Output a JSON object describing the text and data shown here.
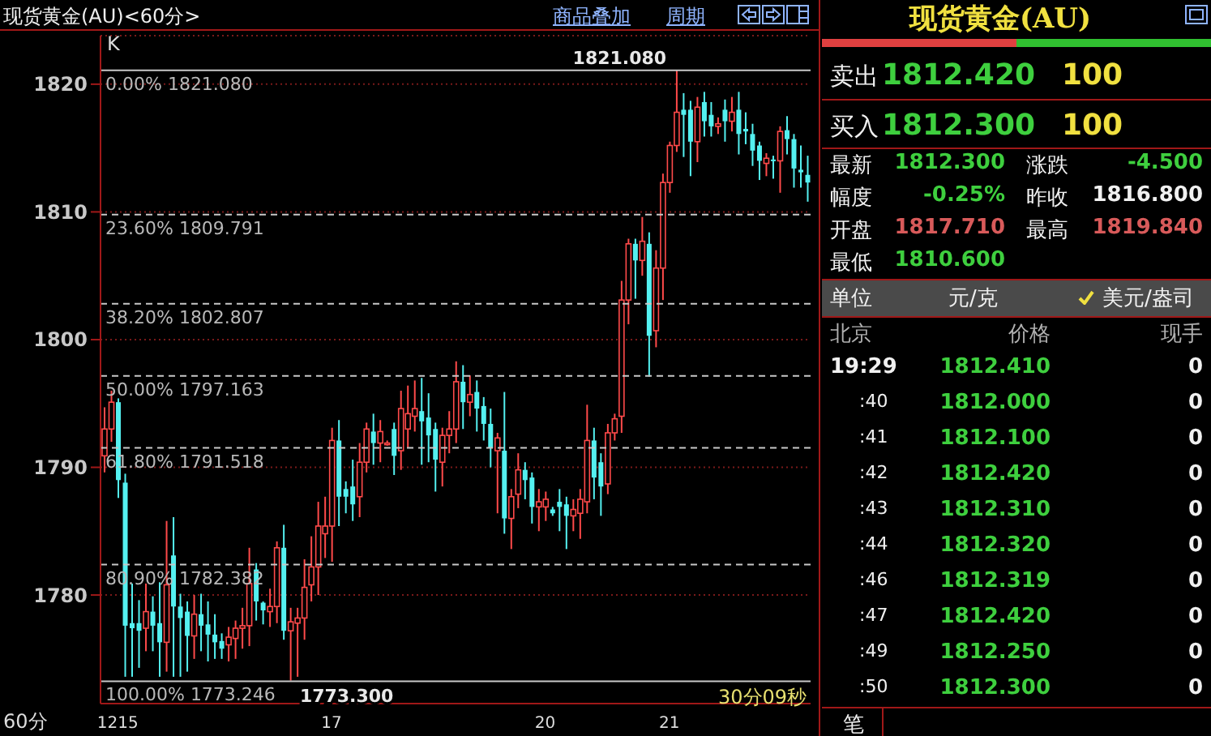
{
  "chart_data": [
    {
      "type": "candlestick",
      "title": "现货黄金(AU)<60分>",
      "categories": [
        null,
        null,
        "1215",
        null,
        null,
        null,
        null,
        null,
        null,
        null,
        null,
        null,
        null,
        null,
        null,
        null,
        null,
        null,
        null,
        null,
        null,
        null,
        null,
        null,
        null,
        null,
        null,
        null,
        null,
        null,
        null,
        null,
        null,
        "17",
        null,
        null,
        null,
        null,
        null,
        null,
        null,
        null,
        null,
        null,
        null,
        null,
        null,
        null,
        null,
        null,
        null,
        null,
        null,
        null,
        null,
        null,
        null,
        null,
        null,
        null,
        null,
        null,
        null,
        null,
        "20",
        null,
        null,
        null,
        null,
        null,
        null,
        null,
        null,
        null,
        null,
        null,
        null,
        null,
        null,
        null,
        null,
        null,
        "21",
        null,
        null,
        null,
        null,
        null,
        null,
        null,
        null,
        null,
        null,
        null,
        null,
        null,
        null,
        null,
        null,
        null,
        null,
        null,
        null
      ],
      "ohlc": [
        [
          1790.9,
          1794.7,
          1789.6,
          1793.0
        ],
        [
          1793.0,
          1796.0,
          1792.0,
          1795.1
        ],
        [
          1795.1,
          1795.4,
          1787.6,
          1789.0
        ],
        [
          1788.8,
          1789.5,
          1773.6,
          1777.6
        ],
        [
          1777.8,
          1780.9,
          1773.6,
          1777.4
        ],
        [
          1777.8,
          1779.6,
          1774.3,
          1777.2
        ],
        [
          1777.4,
          1780.9,
          1775.6,
          1778.7
        ],
        [
          1778.7,
          1779.9,
          1775.6,
          1777.6
        ],
        [
          1777.8,
          1781.0,
          1773.6,
          1776.3
        ],
        [
          1776.3,
          1785.8,
          1774.0,
          1780.8
        ],
        [
          1783.1,
          1786.1,
          1773.6,
          1779.1
        ],
        [
          1779.1,
          1780.1,
          1773.6,
          1778.2
        ],
        [
          1778.7,
          1779.5,
          1774.0,
          1776.8
        ],
        [
          1776.8,
          1780.0,
          1775.0,
          1778.5
        ],
        [
          1778.5,
          1780.1,
          1775.6,
          1777.6
        ],
        [
          1777.7,
          1779.5,
          1774.8,
          1776.9
        ],
        [
          1776.9,
          1778.5,
          1775.0,
          1776.3
        ],
        [
          1776.4,
          1777.0,
          1775.0,
          1775.8
        ],
        [
          1776.1,
          1777.5,
          1774.8,
          1776.7
        ],
        [
          1776.6,
          1778.0,
          1775.0,
          1777.4
        ],
        [
          1777.4,
          1779.0,
          1775.8,
          1777.6
        ],
        [
          1777.6,
          1783.7,
          1776.0,
          1780.9
        ],
        [
          1782.0,
          1782.5,
          1778.0,
          1779.5
        ],
        [
          1779.4,
          1779.5,
          1777.7,
          1778.8
        ],
        [
          1778.7,
          1780.5,
          1777.5,
          1779.1
        ],
        [
          1779.1,
          1784.2,
          1777.8,
          1783.7
        ],
        [
          1783.7,
          1785.5,
          1776.5,
          1777.2
        ],
        [
          1777.2,
          1779.0,
          1773.3,
          1777.9
        ],
        [
          1777.8,
          1779.0,
          1773.6,
          1778.2
        ],
        [
          1778.2,
          1782.8,
          1776.5,
          1780.6
        ],
        [
          1780.8,
          1784.6,
          1779.5,
          1782.2
        ],
        [
          1782.2,
          1787.3,
          1780.0,
          1785.4
        ],
        [
          1784.8,
          1787.7,
          1782.9,
          1785.4
        ],
        [
          1785.4,
          1793.1,
          1782.6,
          1792.1
        ],
        [
          1792.1,
          1793.7,
          1785.4,
          1787.7
        ],
        [
          1788.3,
          1788.9,
          1786.4,
          1787.7
        ],
        [
          1788.5,
          1790.6,
          1785.8,
          1787.1
        ],
        [
          1787.7,
          1791.9,
          1786.1,
          1790.4
        ],
        [
          1790.4,
          1793.5,
          1789.6,
          1793.0
        ],
        [
          1792.8,
          1794.2,
          1790.2,
          1791.9
        ],
        [
          1791.9,
          1793.7,
          1790.4,
          1792.8
        ],
        [
          1791.9,
          1792.1,
          1791.7,
          1791.9
        ],
        [
          1793.0,
          1793.5,
          1789.4,
          1790.9
        ],
        [
          1791.3,
          1796.0,
          1789.8,
          1794.6
        ],
        [
          1793.0,
          1796.4,
          1791.5,
          1794.2
        ],
        [
          1794.0,
          1796.8,
          1792.8,
          1794.6
        ],
        [
          1794.4,
          1797.0,
          1790.2,
          1793.6
        ],
        [
          1793.9,
          1795.8,
          1790.4,
          1792.5
        ],
        [
          1793.0,
          1793.5,
          1788.1,
          1790.6
        ],
        [
          1790.4,
          1793.1,
          1788.5,
          1792.5
        ],
        [
          1792.5,
          1794.4,
          1791.1,
          1793.0
        ],
        [
          1793.0,
          1798.3,
          1791.9,
          1796.7
        ],
        [
          1796.7,
          1798.0,
          1793.0,
          1795.1
        ],
        [
          1795.1,
          1797.2,
          1794.0,
          1795.7
        ],
        [
          1795.9,
          1796.8,
          1792.8,
          1794.6
        ],
        [
          1794.8,
          1795.5,
          1792.1,
          1793.4
        ],
        [
          1793.4,
          1794.6,
          1790.0,
          1791.5
        ],
        [
          1791.3,
          1792.7,
          1786.4,
          1792.3
        ],
        [
          1791.3,
          1795.9,
          1784.8,
          1786.0
        ],
        [
          1786.0,
          1788.3,
          1783.6,
          1787.7
        ],
        [
          1787.9,
          1791.1,
          1786.8,
          1789.8
        ],
        [
          1789.8,
          1790.4,
          1787.5,
          1789.0
        ],
        [
          1789.2,
          1789.6,
          1785.6,
          1786.9
        ],
        [
          1786.9,
          1788.3,
          1785.0,
          1787.3
        ],
        [
          1786.9,
          1788.1,
          1785.8,
          1787.5
        ],
        [
          1786.7,
          1786.9,
          1786.2,
          1786.4
        ],
        [
          1787.3,
          1788.3,
          1785.0,
          1786.9
        ],
        [
          1787.1,
          1787.7,
          1783.6,
          1786.2
        ],
        [
          1786.2,
          1787.5,
          1785.0,
          1786.7
        ],
        [
          1786.4,
          1788.3,
          1784.4,
          1787.5
        ],
        [
          1787.3,
          1794.9,
          1786.4,
          1792.1
        ],
        [
          1792.1,
          1793.1,
          1787.5,
          1789.2
        ],
        [
          1790.4,
          1791.1,
          1786.2,
          1788.5
        ],
        [
          1788.7,
          1793.4,
          1787.9,
          1792.7
        ],
        [
          1792.7,
          1794.2,
          1792.1,
          1793.8
        ],
        [
          1794.0,
          1804.6,
          1792.7,
          1803.1
        ],
        [
          1803.1,
          1807.9,
          1801.2,
          1807.5
        ],
        [
          1807.5,
          1807.9,
          1803.2,
          1806.2
        ],
        [
          1806.2,
          1809.6,
          1805.0,
          1807.7
        ],
        [
          1807.5,
          1808.4,
          1797.1,
          1800.3
        ],
        [
          1800.7,
          1807.0,
          1799.4,
          1805.6
        ],
        [
          1805.6,
          1813.0,
          1803.1,
          1812.3
        ],
        [
          1812.3,
          1815.5,
          1811.5,
          1815.2
        ],
        [
          1815.2,
          1821.08,
          1814.7,
          1817.8
        ],
        [
          1818.0,
          1819.3,
          1814.3,
          1817.6
        ],
        [
          1818.0,
          1818.7,
          1812.8,
          1815.5
        ],
        [
          1815.5,
          1819.0,
          1813.9,
          1818.2
        ],
        [
          1818.6,
          1819.4,
          1815.9,
          1817.1
        ],
        [
          1817.6,
          1818.6,
          1815.9,
          1816.7
        ],
        [
          1816.7,
          1817.4,
          1816.1,
          1816.9
        ],
        [
          1818.0,
          1818.8,
          1815.5,
          1817.1
        ],
        [
          1817.1,
          1819.0,
          1816.3,
          1817.8
        ],
        [
          1818.0,
          1819.4,
          1814.5,
          1816.1
        ],
        [
          1816.5,
          1817.8,
          1815.3,
          1816.3
        ],
        [
          1816.1,
          1816.9,
          1813.6,
          1814.8
        ],
        [
          1815.2,
          1815.5,
          1812.5,
          1814.0
        ],
        [
          1813.8,
          1814.6,
          1812.8,
          1814.2
        ],
        [
          1814.1,
          1814.4,
          1812.6,
          1814.0
        ],
        [
          1814.0,
          1816.7,
          1811.5,
          1816.3
        ],
        [
          1816.4,
          1817.5,
          1814.5,
          1815.7
        ],
        [
          1815.7,
          1816.1,
          1811.9,
          1813.4
        ],
        [
          1813.3,
          1815.2,
          1811.9,
          1813.1
        ],
        [
          1812.9,
          1814.4,
          1810.8,
          1812.3
        ]
      ],
      "ylim": [
        1771.5,
        1823.8
      ],
      "yticks": [
        1780,
        1790,
        1800,
        1810,
        1820
      ],
      "grid": "y",
      "ref_lines": [
        {
          "axis": "y",
          "value": 1821.08,
          "label": "0.00% 1821.080",
          "color": "#c8c8c8",
          "line_style": "solid"
        },
        {
          "axis": "y",
          "value": 1809.791,
          "label": "23.60% 1809.791",
          "color": "#c8c8c8",
          "line_style": "dashed"
        },
        {
          "axis": "y",
          "value": 1802.807,
          "label": "38.20% 1802.807",
          "color": "#c8c8c8",
          "line_style": "dashed"
        },
        {
          "axis": "y",
          "value": 1797.163,
          "label": "50.00% 1797.163",
          "color": "#c8c8c8",
          "line_style": "dashed"
        },
        {
          "axis": "y",
          "value": 1791.518,
          "label": "61.80% 1791.518",
          "color": "#c8c8c8",
          "line_style": "dashed"
        },
        {
          "axis": "y",
          "value": 1782.382,
          "label": "80.90% 1782.382",
          "color": "#c8c8c8",
          "line_style": "dashed"
        },
        {
          "axis": "y",
          "value": 1773.246,
          "label": "100.00% 1773.246",
          "color": "#c8c8c8",
          "line_style": "solid"
        }
      ],
      "annotations": [
        "K",
        "商品叠加",
        "周期",
        "60分",
        "30分09秒",
        {
          "text": "1821.080",
          "y": 1821.08
        },
        {
          "text": "1773.300",
          "y": 1773.3
        }
      ]
    },
    {
      "type": "other",
      "title": "现货黄金(AU)",
      "annotations": [
        "卖出",
        "1812.420",
        "100",
        "买入",
        "1812.300",
        "100",
        "最新",
        "1812.300",
        "涨跌",
        "-4.500",
        "幅度",
        "-0.25%",
        "昨收",
        "1816.800",
        "开盘",
        "1817.710",
        "最高",
        "1819.840",
        "最低",
        "1810.600",
        "单位",
        "元/克",
        "美元/盎司",
        "北京",
        "价格",
        "现手",
        "19:29",
        "1812.410",
        "0",
        ":40",
        "1812.000",
        "0",
        ":41",
        "1812.100",
        "0",
        ":42",
        "1812.420",
        "0",
        ":43",
        "1812.310",
        "0",
        ":44",
        "1812.320",
        "0",
        ":46",
        "1812.319",
        "0",
        ":47",
        "1812.420",
        "0",
        ":49",
        "1812.250",
        "0",
        ":50",
        "1812.300",
        "0",
        "笔"
      ]
    }
  ]
}
